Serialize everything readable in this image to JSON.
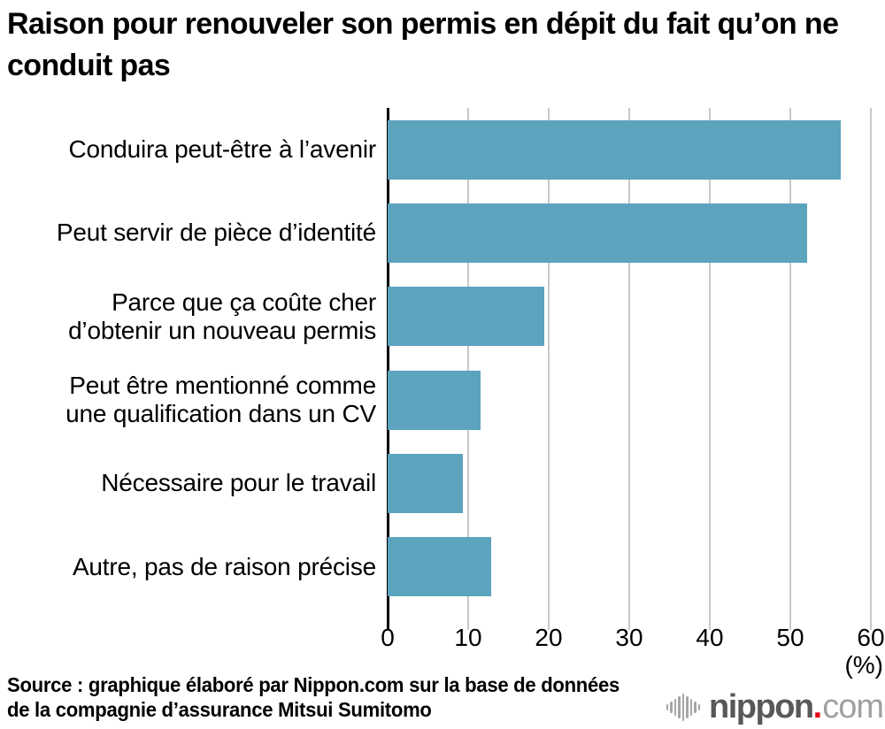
{
  "header": {
    "title": "Raison pour renouveler son permis en dépit du fait qu’on ne conduit pas"
  },
  "chart_data": {
    "type": "bar",
    "orientation": "horizontal",
    "title": "Raison pour renouveler son permis en dépit du fait qu’on ne conduit pas",
    "categories": [
      "Conduira peut-être à l’avenir",
      "Peut servir de pièce d’identité",
      "Parce que ça coûte cher\nd’obtenir un nouveau permis",
      "Peut être mentionné comme\nune qualification dans un CV",
      "Nécessaire pour le travail",
      "Autre, pas de raison précise"
    ],
    "values": [
      56.3,
      52.1,
      19.5,
      11.5,
      9.3,
      12.9
    ],
    "unit": "%",
    "xlabel": "(%)",
    "xlim": [
      0,
      60
    ],
    "xticks": [
      0,
      10,
      20,
      30,
      40,
      50,
      60
    ],
    "grid": true,
    "legend": false,
    "bar_color": "#5ca3be"
  },
  "footer": {
    "source_lines": [
      "Source : graphique élaboré par Nippon.com sur la base de données",
      "de la compagnie d’assurance Mitsui Sumitomo"
    ],
    "logo": {
      "name": "nippon",
      "dot": ".",
      "tld": "com"
    }
  },
  "colors": {
    "bar": "#5ca3be",
    "gridline": "#c9c9c9",
    "axis": "#000000",
    "text": "#000000",
    "logo_dark": "#595757",
    "logo_light": "#9fa0a0",
    "logo_red": "#e60012",
    "logo_wave": "#a6a6a7"
  }
}
